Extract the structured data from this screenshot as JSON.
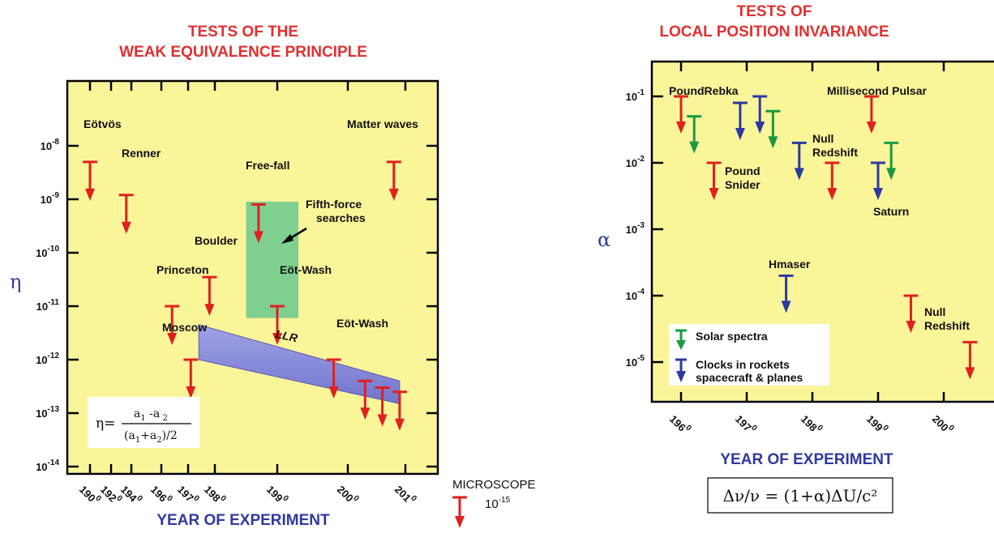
{
  "chart_data": [
    {
      "type": "scatter",
      "title": "TESTS OF THE WEAK EQUIVALENCE PRINCIPLE",
      "title_lines": [
        "TESTS OF THE",
        "WEAK EQUIVALENCE PRINCIPLE"
      ],
      "xlabel": "YEAR OF EXPERIMENT",
      "ylabel": "η",
      "y_scale": "log",
      "y_ticks": [
        "10-8",
        "10-9",
        "10-10",
        "10-11",
        "10-12",
        "10-13",
        "10-14"
      ],
      "x_ticks": [
        "1900",
        "1920",
        "1940",
        "1960",
        "1970",
        "1980",
        "1990",
        "2000",
        "2010"
      ],
      "colors": {
        "background": "#fbf59a",
        "limit_arrow": "#e02020",
        "llr_band": "#8a8cd8",
        "fifth_force_box": "#7fcf8f"
      },
      "annotations": [
        {
          "text": "Eötvös",
          "year": 1900,
          "eta": 5e-09
        },
        {
          "text": "Renner",
          "year": 1935,
          "eta": 1.2e-09
        },
        {
          "text": "Free-fall",
          "year": 1987,
          "eta": 8e-10
        },
        {
          "text": "Fifth-force searches",
          "year": 1991,
          "eta": 1.5e-10
        },
        {
          "text": "Boulder",
          "year": 1978,
          "eta": 3.5e-11
        },
        {
          "text": "Princeton",
          "year": 1964,
          "eta": 1e-11
        },
        {
          "text": "Eöt-Wash",
          "year": 1990,
          "eta": 1e-11
        },
        {
          "text": "Moscow",
          "year": 1971,
          "eta": 1e-12
        },
        {
          "text": "LLR",
          "year": 1989,
          "eta": 1.5e-12
        },
        {
          "text": "Eöt-Wash",
          "year": 2003,
          "eta": 1e-12
        },
        {
          "text": "Matter waves",
          "year": 2008,
          "eta": 5e-09
        }
      ],
      "series": [
        {
          "name": "upper limits",
          "points": [
            {
              "year": 1900,
              "eta": 5e-09
            },
            {
              "year": 1935,
              "eta": 1.2e-09
            },
            {
              "year": 1964,
              "eta": 1e-11
            },
            {
              "year": 1971,
              "eta": 1e-12
            },
            {
              "year": 1978,
              "eta": 3.5e-11
            },
            {
              "year": 1987,
              "eta": 8e-10
            },
            {
              "year": 1990,
              "eta": 1e-11
            },
            {
              "year": 1998,
              "eta": 1e-12
            },
            {
              "year": 2003,
              "eta": 4e-13
            },
            {
              "year": 2006,
              "eta": 3e-13
            },
            {
              "year": 2009,
              "eta": 2.5e-13
            },
            {
              "year": 2008,
              "eta": 5e-09
            }
          ]
        }
      ],
      "llr_band": [
        {
          "year": 1974,
          "top": 4.5e-12,
          "bottom": 1e-12
        },
        {
          "year": 2009,
          "top": 4e-13,
          "bottom": 1.5e-13
        }
      ],
      "fifth_force_box": {
        "year_start": 1985,
        "year_end": 1993,
        "eta_top": 9e-10,
        "eta_bottom": 6e-12
      },
      "formula": {
        "lhs": "η=",
        "numerator": "a1-a2",
        "denominator": "(a1+a2)/2"
      },
      "microscope": {
        "label": "MICROSCOPE",
        "value": "10-15"
      }
    },
    {
      "type": "scatter",
      "title": "TESTS OF LOCAL POSITION INVARIANCE",
      "title_lines": [
        "TESTS OF",
        "LOCAL POSITION INVARIANCE"
      ],
      "xlabel": "YEAR OF EXPERIMENT",
      "ylabel": "α",
      "y_scale": "log",
      "y_ticks": [
        "10-1",
        "10-2",
        "10-3",
        "10-4",
        "10-5"
      ],
      "x_ticks": [
        "1960",
        "1970",
        "1980",
        "1990",
        "2000"
      ],
      "colors": {
        "background": "#fbf59a",
        "red": "#e02020",
        "green": "#1a9a40",
        "blue": "#2b3aa0"
      },
      "annotations": [
        {
          "text": "PoundRebka",
          "year": 1960,
          "alpha": 0.1
        },
        {
          "text": "Millisecond Pulsar",
          "year": 1989,
          "alpha": 0.1
        },
        {
          "text": "Null Redshift",
          "year": 1983,
          "alpha": 0.02
        },
        {
          "text": "Pound Snider",
          "year": 1965,
          "alpha": 0.01
        },
        {
          "text": "Saturn",
          "year": 1990,
          "alpha": 0.01
        },
        {
          "text": "Hmaser",
          "year": 1976,
          "alpha": 0.0002
        },
        {
          "text": "Null Redshift",
          "year": 1995,
          "alpha": 0.0001
        }
      ],
      "series": [
        {
          "name": "red",
          "points": [
            {
              "year": 1960,
              "alpha": 0.1
            },
            {
              "year": 1965,
              "alpha": 0.01
            },
            {
              "year": 1983,
              "alpha": 0.01
            },
            {
              "year": 1989,
              "alpha": 0.1
            },
            {
              "year": 1995,
              "alpha": 0.0001
            },
            {
              "year": 2004,
              "alpha": 2e-05
            }
          ]
        },
        {
          "name": "Solar spectra",
          "points": [
            {
              "year": 1962,
              "alpha": 0.05
            },
            {
              "year": 1974,
              "alpha": 0.06
            },
            {
              "year": 1992,
              "alpha": 0.02
            }
          ]
        },
        {
          "name": "Clocks in rockets spacecraft & planes",
          "points": [
            {
              "year": 1969,
              "alpha": 0.08
            },
            {
              "year": 1972,
              "alpha": 0.1
            },
            {
              "year": 1978,
              "alpha": 0.02
            },
            {
              "year": 1976,
              "alpha": 0.0002
            },
            {
              "year": 1990,
              "alpha": 0.01
            }
          ]
        }
      ],
      "legend": [
        {
          "label": "Solar spectra"
        },
        {
          "label": "Clocks in rockets",
          "label2": "spacecraft & planes"
        }
      ],
      "formula": "Δν/ν = (1+α)ΔU/c²"
    }
  ]
}
